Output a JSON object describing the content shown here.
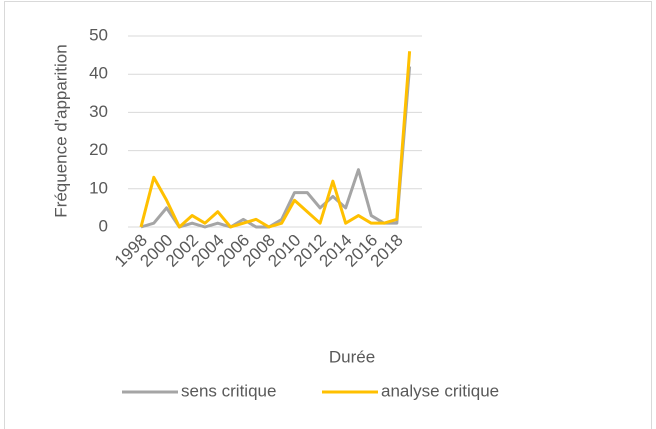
{
  "chart_data": {
    "type": "line",
    "x_label": "Durée",
    "y_label": "Fréquence d'apparition",
    "categories": [
      "1998",
      null,
      "2000",
      null,
      "2002",
      null,
      "2004",
      null,
      "2006",
      null,
      "2008",
      null,
      "2010",
      null,
      "2012",
      null,
      "2014",
      null,
      "2016",
      null,
      "2018",
      null
    ],
    "series": [
      {
        "name": "sens critique",
        "color": "#a5a5a5",
        "values": [
          0,
          1,
          5,
          0,
          1,
          0,
          1,
          0,
          2,
          0,
          0,
          2,
          9,
          9,
          5,
          8,
          5,
          15,
          3,
          1,
          1,
          42
        ]
      },
      {
        "name": "analyse critique",
        "color": "#ffc000",
        "values": [
          0,
          13,
          7,
          0,
          3,
          1,
          4,
          0,
          1,
          2,
          0,
          1,
          7,
          4,
          1,
          12,
          1,
          3,
          1,
          1,
          2,
          46
        ]
      }
    ],
    "ylim": [
      0,
      50
    ],
    "yticks": [
      0,
      10,
      20,
      30,
      40,
      50
    ],
    "grid": true,
    "legend": "bottom"
  }
}
